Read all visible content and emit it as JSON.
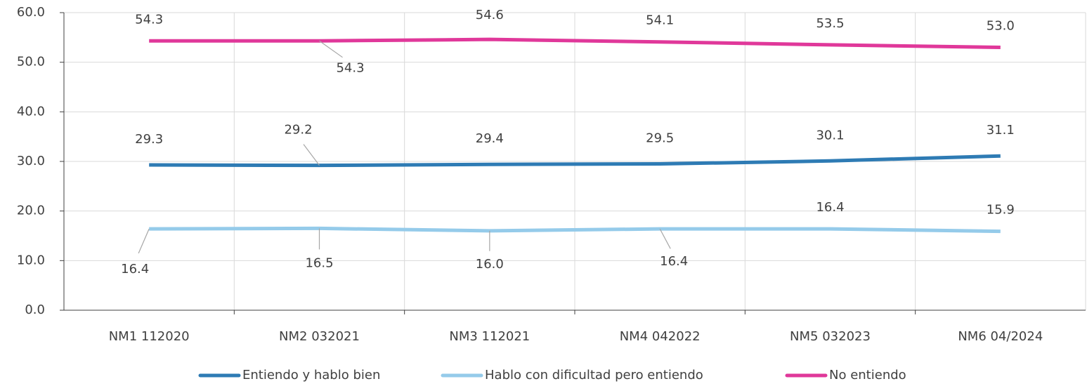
{
  "chart_data": {
    "type": "line",
    "categories": [
      "NM1 112020",
      "NM2 032021",
      "NM3 112021",
      "NM4 042022",
      "NM5 032023",
      "NM6 04/2024"
    ],
    "series": [
      {
        "name": "Entiendo y hablo bien",
        "color": "#2e7bb4",
        "values": [
          29.3,
          29.2,
          29.4,
          29.5,
          30.1,
          31.1
        ],
        "value_labels": [
          "29.3",
          "29.2",
          "29.4",
          "29.5",
          "30.1",
          "31.1"
        ]
      },
      {
        "name": "Hablo con dificultad pero entiendo",
        "color": "#95cbea",
        "values": [
          16.4,
          16.5,
          16.0,
          16.4,
          16.4,
          15.9
        ],
        "value_labels": [
          "16.4",
          "16.5",
          "16.0",
          "16.4",
          "16.4",
          "15.9"
        ]
      },
      {
        "name": "No entiendo",
        "color": "#e0389a",
        "values": [
          54.3,
          54.3,
          54.6,
          54.1,
          53.5,
          53.0
        ],
        "value_labels": [
          "54.3",
          "54.3",
          "54.6",
          "54.1",
          "53.5",
          "53.0"
        ]
      }
    ],
    "ylim": [
      0,
      60
    ],
    "yticks": [
      {
        "value": 0,
        "label": "0.0"
      },
      {
        "value": 10,
        "label": "10.0"
      },
      {
        "value": 20,
        "label": "20.0"
      },
      {
        "value": 30,
        "label": "30.0"
      },
      {
        "value": 40,
        "label": "40.0"
      },
      {
        "value": 50,
        "label": "50.0"
      },
      {
        "value": 60,
        "label": "60.0"
      }
    ],
    "grid": true,
    "legend": "bottom"
  }
}
